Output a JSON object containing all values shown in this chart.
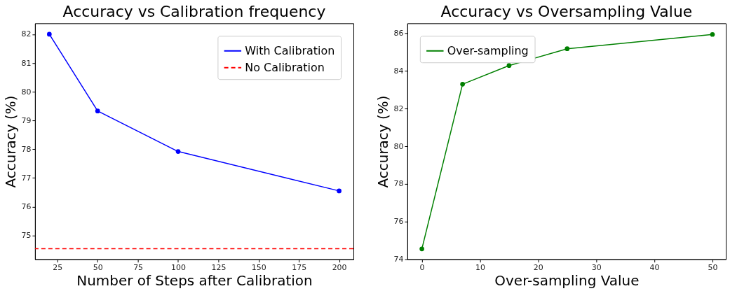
{
  "chart_data": [
    {
      "type": "line",
      "title": "Accuracy vs Calibration frequency",
      "xlabel": "Number of Steps after Calibration",
      "ylabel": "Accuracy (%)",
      "x": [
        20,
        50,
        100,
        200
      ],
      "series": [
        {
          "name": "With Calibration",
          "color": "#0000ff",
          "values": [
            82.0,
            79.33,
            77.92,
            76.55
          ]
        }
      ],
      "ref_lines": [
        {
          "axis": "y",
          "value": 74.54,
          "label": "No Calibration",
          "color": "#ff0000",
          "line_style": "dashed"
        }
      ],
      "xlim": [
        11.1,
        208.9
      ],
      "ylim": [
        74.17,
        82.38
      ],
      "xticks": [
        25,
        50,
        75,
        100,
        125,
        150,
        175,
        200
      ],
      "yticks": [
        75,
        76,
        77,
        78,
        79,
        80,
        81,
        82
      ],
      "marker": "circle",
      "line_style": "solid",
      "legend": "top right",
      "grid": false
    },
    {
      "type": "line",
      "title": "Accuracy vs Oversampling Value",
      "xlabel": "Over-sampling Value",
      "ylabel": "Accuracy (%)",
      "x": [
        0,
        7,
        15,
        25,
        50
      ],
      "series": [
        {
          "name": "Over-sampling",
          "color": "#008000",
          "values": [
            74.55,
            83.29,
            84.28,
            85.17,
            85.93
          ]
        }
      ],
      "xlim": [
        -2.5,
        52.3
      ],
      "ylim": [
        74.0,
        86.52
      ],
      "xticks": [
        0,
        10,
        20,
        30,
        40,
        50
      ],
      "yticks": [
        74,
        76,
        78,
        80,
        82,
        84,
        86
      ],
      "marker": "circle",
      "line_style": "solid",
      "legend": "top left",
      "grid": false
    }
  ]
}
